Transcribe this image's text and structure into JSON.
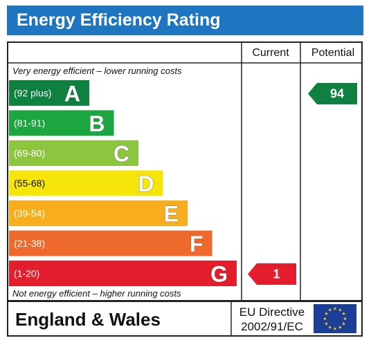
{
  "title": "Energy Efficiency Rating",
  "colors": {
    "header": "#1f76c0",
    "border": "#222222",
    "flag": "#1b3e96",
    "star": "#f4d20a"
  },
  "chart_data": {
    "type": "bar",
    "headers": {
      "current": "Current",
      "potential": "Potential"
    },
    "note_top": "Very energy efficient – lower running costs",
    "note_bottom": "Not energy efficient – higher running costs",
    "bands": [
      {
        "letter": "A",
        "range": "(92 plus)",
        "color": "#0e8040"
      },
      {
        "letter": "B",
        "range": "(81-91)",
        "color": "#1ca640"
      },
      {
        "letter": "C",
        "range": "(69-80)",
        "color": "#8cc63f"
      },
      {
        "letter": "D",
        "range": "(55-68)",
        "color": "#f5e50a"
      },
      {
        "letter": "E",
        "range": "(39-54)",
        "color": "#f7ad1c"
      },
      {
        "letter": "F",
        "range": "(21-38)",
        "color": "#ee6a2c"
      },
      {
        "letter": "G",
        "range": "(1-20)",
        "color": "#e31d2b"
      }
    ],
    "current": {
      "value": 1,
      "label": "1",
      "band": "G",
      "color": "#e31d2b"
    },
    "potential": {
      "value": 94,
      "label": "94",
      "band": "A",
      "color": "#0e8040"
    }
  },
  "footer": {
    "region": "England & Wales",
    "directive_line1": "EU Directive",
    "directive_line2": "2002/91/EC",
    "flag_icon": "eu-flag-icon"
  }
}
